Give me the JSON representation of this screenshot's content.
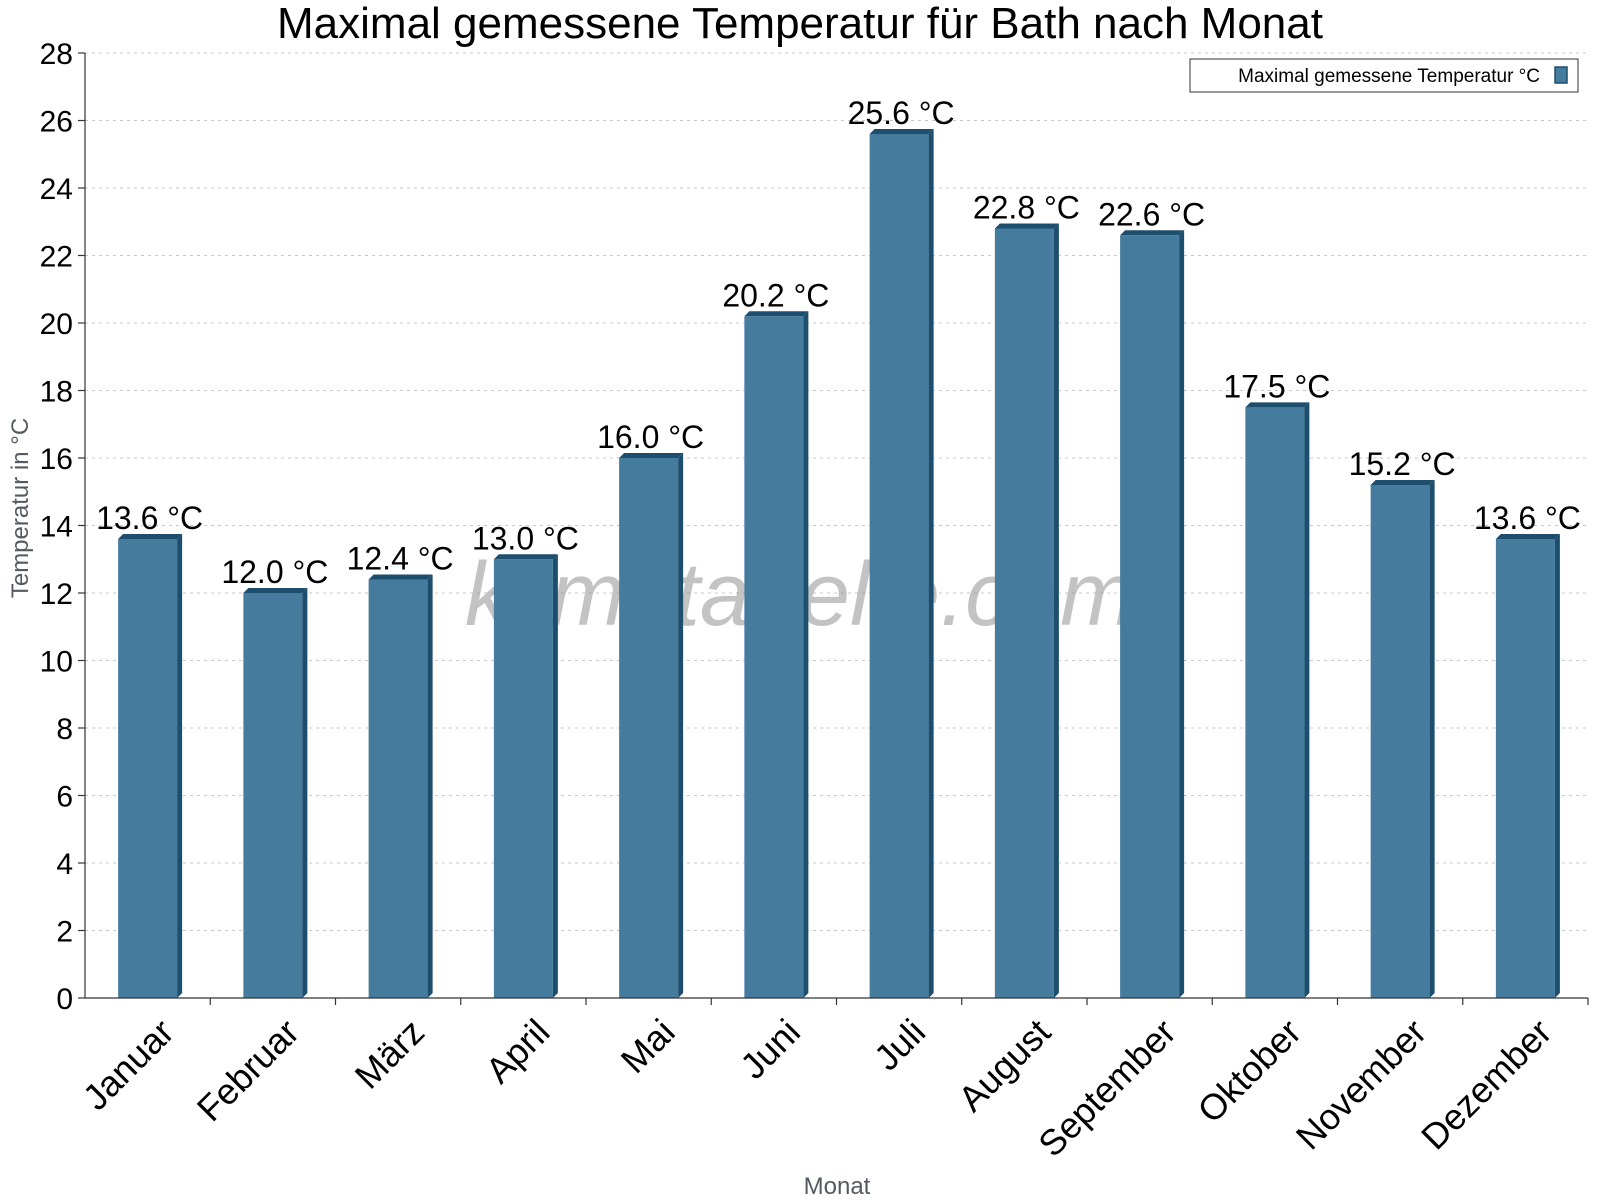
{
  "chart_data": {
    "type": "bar",
    "title": "Maximal gemessene Temperatur für Bath nach Monat",
    "xlabel": "Monat",
    "ylabel": "Temperatur in °C",
    "ylim": [
      0,
      28
    ],
    "ytick_step": 2,
    "grid": true,
    "legend_position": "top-right",
    "categories": [
      "Januar",
      "Februar",
      "März",
      "April",
      "Mai",
      "Juni",
      "Juli",
      "August",
      "September",
      "Oktober",
      "November",
      "Dezember"
    ],
    "series": [
      {
        "name": "Maximal gemessene Temperatur °C",
        "values": [
          13.6,
          12.0,
          12.4,
          13.0,
          16.0,
          20.2,
          25.6,
          22.8,
          22.6,
          17.5,
          15.2,
          13.6
        ],
        "labels": [
          "13.6 °C",
          "12.0 °C",
          "12.4 °C",
          "13.0 °C",
          "16.0 °C",
          "20.2 °C",
          "25.6 °C",
          "22.8 °C",
          "22.6 °C",
          "17.5 °C",
          "15.2 °C",
          "13.6 °C"
        ],
        "color": "#457b9d",
        "edge_color": "#1d4e6e"
      }
    ],
    "watermark": "klimatabelle.com"
  }
}
